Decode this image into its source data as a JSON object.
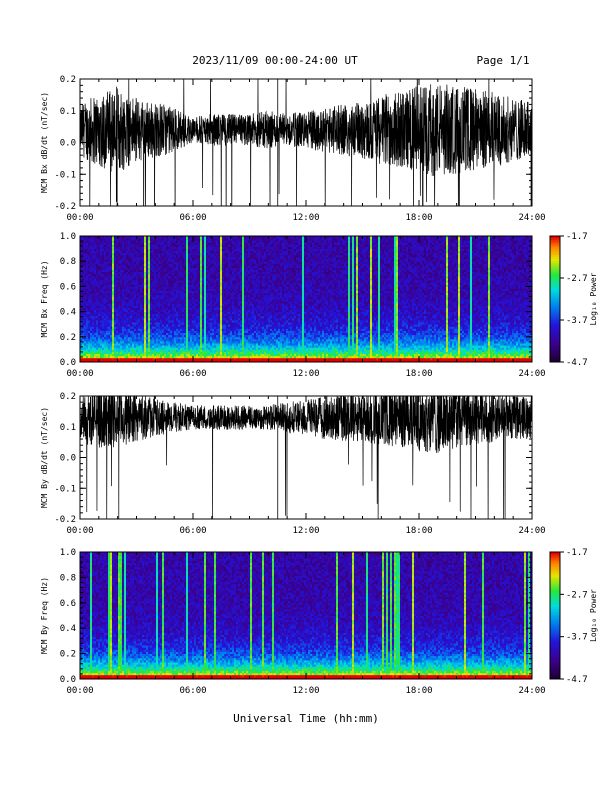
{
  "header": {
    "title": "2023/11/09  00:00-24:00 UT",
    "page": "Page 1/1"
  },
  "xlabel": "Universal Time (hh:mm)",
  "colorbar": {
    "label": "Log₁₀ Power",
    "ticks": [
      "-1.7",
      "-2.7",
      "-3.7",
      "-4.7"
    ],
    "range": [
      -4.7,
      -1.7
    ]
  },
  "chart_data": [
    {
      "type": "line",
      "ylabel": "MCM Bx dB/dt (nT/sec)",
      "xlim": [
        0,
        24
      ],
      "ylim": [
        -0.2,
        0.2
      ],
      "x_ticks": [
        "00:00",
        "06:00",
        "12:00",
        "18:00",
        "24:00"
      ],
      "y_ticks": [
        "0.2",
        "0.1",
        "0.0",
        "-0.1",
        "-0.2"
      ],
      "series": [
        {
          "mean": 0.04,
          "envelope": [
            [
              0,
              0.08
            ],
            [
              1,
              0.12
            ],
            [
              2,
              0.14
            ],
            [
              3,
              0.1
            ],
            [
              4,
              0.09
            ],
            [
              5,
              0.07
            ],
            [
              6,
              0.04
            ],
            [
              7,
              0.05
            ],
            [
              8,
              0.05
            ],
            [
              9,
              0.05
            ],
            [
              10,
              0.06
            ],
            [
              11,
              0.05
            ],
            [
              12,
              0.06
            ],
            [
              13,
              0.07
            ],
            [
              14,
              0.08
            ],
            [
              15,
              0.09
            ],
            [
              16,
              0.11
            ],
            [
              17,
              0.12
            ],
            [
              18,
              0.14
            ],
            [
              19,
              0.15
            ],
            [
              20,
              0.14
            ],
            [
              21,
              0.13
            ],
            [
              22,
              0.12
            ],
            [
              23,
              0.1
            ],
            [
              24,
              0.09
            ]
          ]
        }
      ]
    },
    {
      "type": "heatmap",
      "ylabel": "MCM Bx Freq (Hz)",
      "xlim": [
        0,
        24
      ],
      "ylim": [
        0,
        1
      ],
      "x_ticks": [
        "00:00",
        "06:00",
        "12:00",
        "18:00",
        "24:00"
      ],
      "y_ticks": [
        "1.0",
        "0.8",
        "0.6",
        "0.4",
        "0.2",
        "0.0"
      ]
    },
    {
      "type": "line",
      "ylabel": "MCM By dB/dt (nT/sec)",
      "xlim": [
        0,
        24
      ],
      "ylim": [
        -0.2,
        0.2
      ],
      "x_ticks": [
        "00:00",
        "06:00",
        "12:00",
        "18:00",
        "24:00"
      ],
      "y_ticks": [
        "0.2",
        "0.1",
        "0.0",
        "-0.1",
        "-0.2"
      ],
      "series": [
        {
          "mean": 0.13,
          "envelope": [
            [
              0,
              0.08
            ],
            [
              1,
              0.1
            ],
            [
              2,
              0.1
            ],
            [
              3,
              0.08
            ],
            [
              4,
              0.06
            ],
            [
              5,
              0.05
            ],
            [
              6,
              0.04
            ],
            [
              7,
              0.04
            ],
            [
              8,
              0.04
            ],
            [
              9,
              0.04
            ],
            [
              10,
              0.04
            ],
            [
              11,
              0.05
            ],
            [
              12,
              0.06
            ],
            [
              13,
              0.07
            ],
            [
              14,
              0.08
            ],
            [
              15,
              0.08
            ],
            [
              16,
              0.09
            ],
            [
              17,
              0.1
            ],
            [
              18,
              0.11
            ],
            [
              19,
              0.12
            ],
            [
              20,
              0.1
            ],
            [
              21,
              0.09
            ],
            [
              22,
              0.08
            ],
            [
              23,
              0.07
            ],
            [
              24,
              0.07
            ]
          ]
        }
      ]
    },
    {
      "type": "heatmap",
      "ylabel": "MCM By Freq (Hz)",
      "xlim": [
        0,
        24
      ],
      "ylim": [
        0,
        1
      ],
      "x_ticks": [
        "00:00",
        "06:00",
        "12:00",
        "18:00",
        "24:00"
      ],
      "y_ticks": [
        "1.0",
        "0.8",
        "0.6",
        "0.4",
        "0.2",
        "0.0"
      ]
    }
  ]
}
